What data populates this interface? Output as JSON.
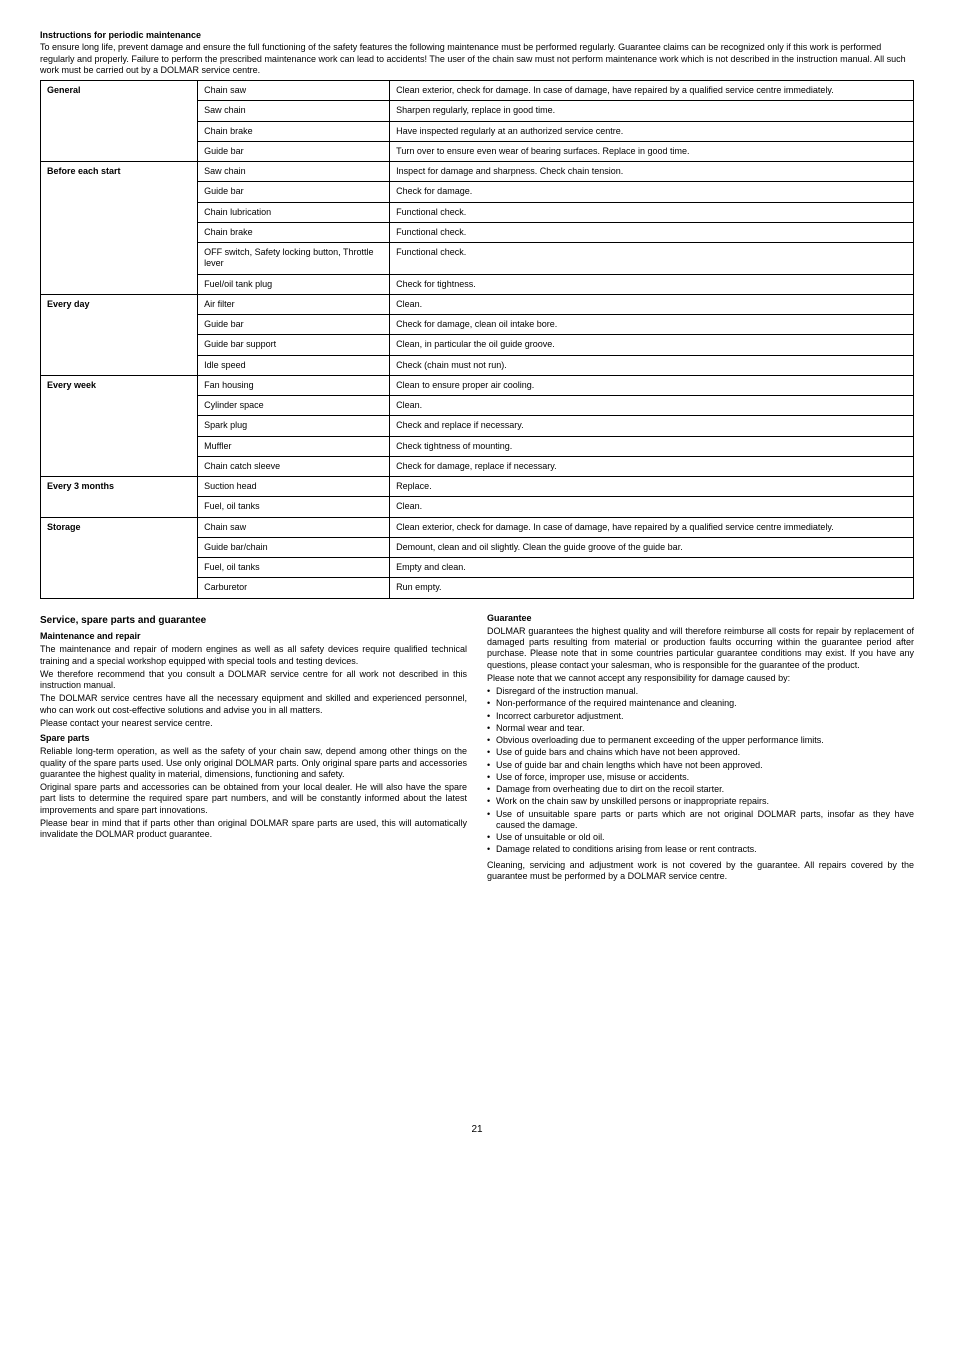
{
  "heading": "Instructions for periodic maintenance",
  "intro": "To ensure long life, prevent damage and ensure the full functioning of the safety features the following maintenance must be performed regularly. Guarantee claims can be recognized only if this work is performed regularly and properly. Failure to perform the prescribed maintenance work can lead to accidents!\nThe user of the chain saw must not perform maintenance work which is not described in the instruction manual. All such work must be carried out by a DOLMAR service centre.",
  "table": [
    {
      "cat": "General",
      "rows": [
        [
          "Chain saw",
          "Clean exterior, check for damage. In case of damage, have repaired by a qualified service centre immediately."
        ],
        [
          "Saw chain",
          "Sharpen regularly, replace in good time."
        ],
        [
          "Chain brake",
          "Have inspected regularly at an authorized service centre."
        ],
        [
          "Guide bar",
          "Turn over to ensure even wear of bearing surfaces.\nReplace in good time."
        ]
      ]
    },
    {
      "cat": "Before each start",
      "rows": [
        [
          "Saw chain",
          "Inspect for damage and sharpness.\nCheck chain tension."
        ],
        [
          "Guide bar",
          "Check for damage."
        ],
        [
          "Chain lubrication",
          "Functional check."
        ],
        [
          "Chain brake",
          "Functional check."
        ],
        [
          "OFF  switch, Safety locking button, Throttle lever",
          "Functional check."
        ],
        [
          "Fuel/oil tank plug",
          "Check for tightness."
        ]
      ]
    },
    {
      "cat": "Every day",
      "rows": [
        [
          "Air filter",
          "Clean."
        ],
        [
          "Guide bar",
          "Check for damage, clean oil intake bore."
        ],
        [
          "Guide bar support",
          "Clean, in particular the oil guide groove."
        ],
        [
          "Idle speed",
          "Check (chain must not run)."
        ]
      ]
    },
    {
      "cat": "Every week",
      "rows": [
        [
          "Fan housing",
          "Clean to ensure proper air cooling."
        ],
        [
          "Cylinder space",
          "Clean."
        ],
        [
          "Spark plug",
          "Check and replace if necessary."
        ],
        [
          "Muffler",
          "Check tightness of mounting."
        ],
        [
          "Chain catch sleeve",
          "Check for damage, replace if necessary."
        ]
      ]
    },
    {
      "cat": "Every 3 months",
      "rows": [
        [
          "Suction head",
          "Replace."
        ],
        [
          "Fuel, oil tanks",
          "Clean."
        ]
      ]
    },
    {
      "cat": "Storage",
      "rows": [
        [
          "Chain saw",
          "Clean exterior, check for damage. In case of damage, have repaired by a qualified service centre immediately."
        ],
        [
          "Guide bar/chain",
          "Demount, clean and oil slightly.\nClean the guide groove of the guide bar."
        ],
        [
          "Fuel, oil tanks",
          "Empty and clean."
        ],
        [
          "Carburetor",
          "Run empty."
        ]
      ]
    }
  ],
  "left": {
    "title": "Service, spare parts and guarantee",
    "sub1": "Maintenance and repair",
    "p1": "The maintenance and repair of modern engines as well as all safety devices require qualified technical training and a special workshop equipped with special tools and testing devices.",
    "p2": "We therefore recommend that you consult a DOLMAR service centre for all work not described in this instruction manual.",
    "p3": "The DOLMAR service centres have all the necessary equipment and skilled and experienced personnel, who can work out cost-effective solutions and advise you in all matters.",
    "p4": "Please contact your nearest service centre.",
    "sub2": "Spare parts",
    "p5": "Reliable long-term operation, as well as the safety of your chain saw, depend among other things on the quality of the spare parts used. Use only original DOLMAR parts. Only original spare parts and accessories guarantee the highest quality in material, dimensions, functioning and safety.",
    "p6": "Original spare parts and accessories can be obtained from your local dealer. He will also have the spare part lists to determine the required spare part numbers, and will be constantly informed about the latest improvements and spare part innovations.",
    "p7": "Please bear in mind that if parts other than original DOLMAR spare parts are used, this will automatically invalidate the DOLMAR product guarantee."
  },
  "right": {
    "title": "Guarantee",
    "p1": "DOLMAR guarantees the highest quality and will therefore reimburse all costs for repair by replacement of damaged parts resulting from material or production faults occurring within the guarantee period after purchase. Please note that in some countries particular guarantee conditions may exist. If you have any questions, please contact your salesman, who is responsible for the guarantee of the product.",
    "p2": "Please note that we cannot accept any responsibility for damage caused by:",
    "bullets": [
      "Disregard of the instruction manual.",
      "Non-performance of the required maintenance and cleaning.",
      "Incorrect carburetor adjustment.",
      "Normal wear and tear.",
      "Obvious overloading due to permanent exceeding of the upper performance limits.",
      "Use of guide bars and chains which have not been approved.",
      "Use of guide bar and chain lengths which have not been approved.",
      "Use of force, improper use, misuse or accidents.",
      "Damage from overheating due to dirt on the recoil starter.",
      "Work on the chain saw by unskilled persons or inappropriate repairs.",
      "Use of unsuitable spare parts or parts which are not original DOLMAR parts, insofar as they have caused the damage.",
      "Use of unsuitable or old oil.",
      "Damage related to conditions arising from lease or rent contracts."
    ],
    "p3": "Cleaning, servicing and adjustment work is not covered by the guarantee. All repairs covered by the guarantee must be performed by a DOLMAR service centre."
  },
  "pageNum": "21"
}
